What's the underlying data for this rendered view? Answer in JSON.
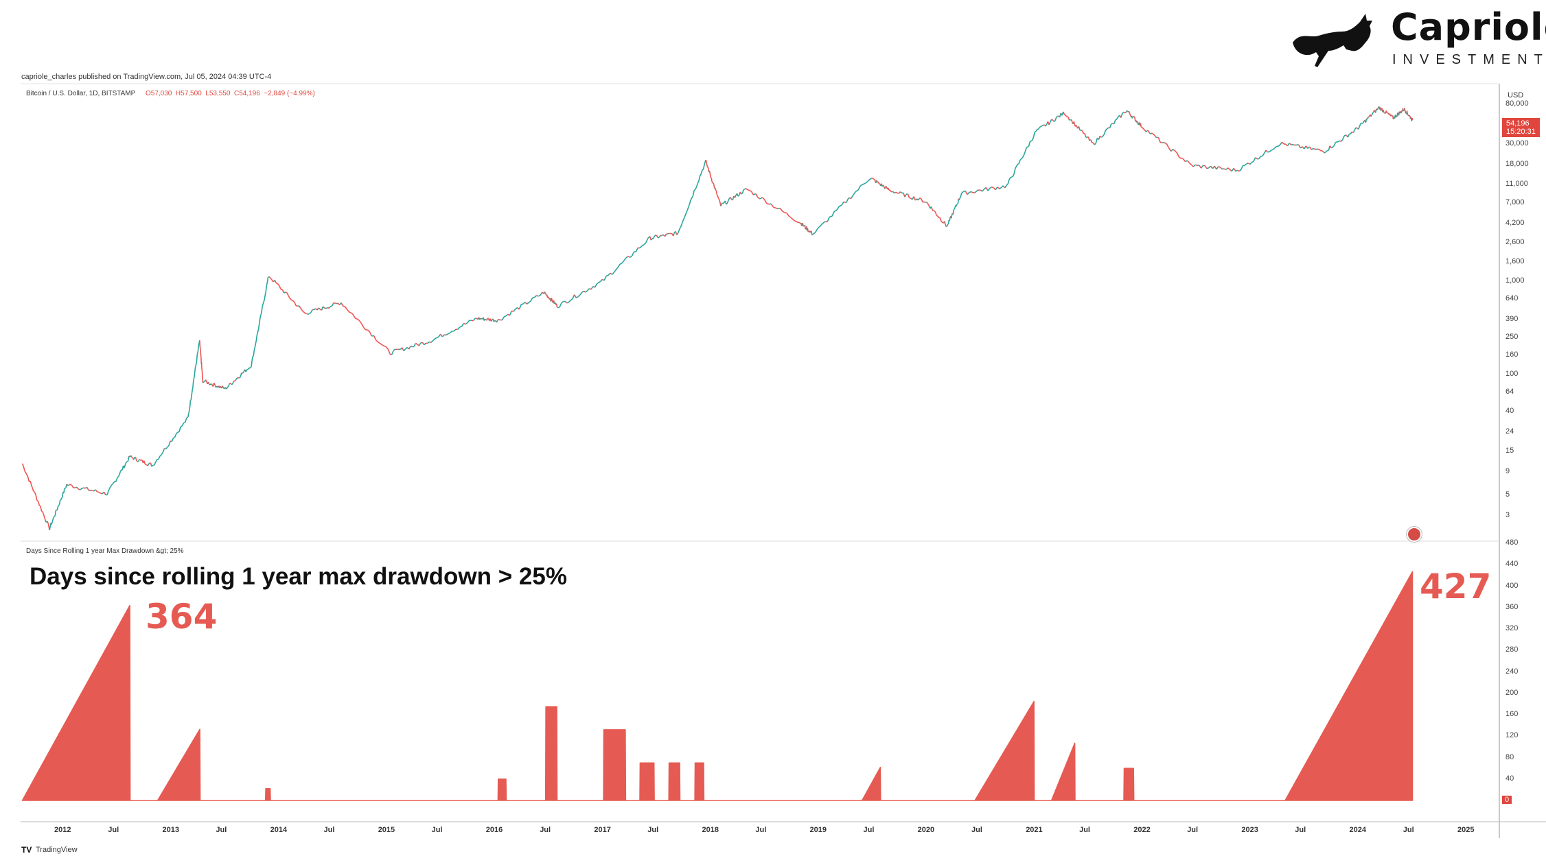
{
  "brand": {
    "name": "Capriole",
    "subtitle": "INVESTMENTS"
  },
  "header": {
    "published": "capriole_charles published on TradingView.com, Jul 05, 2024 04:39 UTC-4",
    "symbol_line": "Bitcoin / U.S. Dollar, 1D, BITSTAMP",
    "ohlc": "O57,030  H57,500  L53,550  C54,196  −2,849 (−4.99%)"
  },
  "price_axis": {
    "currency": "USD",
    "ticks": [
      "80,000",
      "30,000",
      "18,000",
      "11,000",
      "7,000",
      "4,200",
      "2,600",
      "1,600",
      "1,000",
      "640",
      "390",
      "250",
      "160",
      "100",
      "64",
      "40",
      "24",
      "15",
      "9",
      "5",
      "3"
    ],
    "last_price": "54,196",
    "countdown": "15:20:31"
  },
  "indicator": {
    "label": "Days Since Rolling 1 year Max Drawdown &gt; 25%",
    "title": "Days since rolling 1 year max drawdown > 25%",
    "left_value": "364",
    "right_value": "427",
    "axis_ticks": [
      "480",
      "440",
      "400",
      "360",
      "320",
      "280",
      "240",
      "200",
      "160",
      "120",
      "80",
      "40",
      "0"
    ]
  },
  "time_axis": {
    "labels": [
      "2012",
      "Jul",
      "2013",
      "Jul",
      "2014",
      "Jul",
      "2015",
      "Jul",
      "2016",
      "Jul",
      "2017",
      "Jul",
      "2018",
      "Jul",
      "2019",
      "Jul",
      "2020",
      "Jul",
      "2021",
      "Jul",
      "2022",
      "Jul",
      "2023",
      "Jul",
      "2024",
      "Jul",
      "2025"
    ]
  },
  "footer": {
    "logo": "TradingView"
  },
  "colors": {
    "accent": "#e55a52",
    "candle_up": "#26a69a",
    "candle_down": "#ef5350"
  },
  "chart_data": [
    {
      "type": "line",
      "title": "Bitcoin / U.S. Dollar, 1D, BITSTAMP",
      "ylabel": "USD",
      "scale": "log",
      "ylim": [
        2.5,
        80000
      ],
      "xlim": [
        "2011-08-01",
        "2025-04-01"
      ],
      "grid": false,
      "x": [
        "2011-08-18",
        "2011-11-18",
        "2012-01-15",
        "2012-06-01",
        "2012-08-16",
        "2012-11-01",
        "2013-03-01",
        "2013-04-09",
        "2013-04-20",
        "2013-07-05",
        "2013-10-01",
        "2013-11-29",
        "2014-04-01",
        "2014-08-01",
        "2015-01-14",
        "2015-06-01",
        "2015-11-04",
        "2016-01-15",
        "2016-06-18",
        "2016-08-03",
        "2017-01-01",
        "2017-06-11",
        "2017-09-14",
        "2017-12-17",
        "2018-02-06",
        "2018-05-05",
        "2018-11-01",
        "2018-12-15",
        "2019-06-26",
        "2019-09-01",
        "2020-01-01",
        "2020-03-13",
        "2020-05-01",
        "2020-10-01",
        "2021-01-08",
        "2021-04-14",
        "2021-07-20",
        "2021-11-10",
        "2022-01-01",
        "2022-06-18",
        "2022-11-21",
        "2023-04-14",
        "2023-09-11",
        "2024-01-01",
        "2024-03-14",
        "2024-05-01",
        "2024-06-07",
        "2024-07-05"
      ],
      "y": [
        11,
        2.2,
        6.5,
        5.2,
        13,
        10.5,
        34,
        230,
        85,
        70,
        125,
        1150,
        450,
        590,
        170,
        230,
        400,
        380,
        760,
        540,
        1000,
        2900,
        3300,
        19500,
        6500,
        9800,
        4300,
        3200,
        13000,
        9500,
        7200,
        3900,
        8800,
        10600,
        41000,
        64800,
        29800,
        69000,
        46300,
        17600,
        15600,
        30400,
        25000,
        44000,
        73800,
        57000,
        71000,
        54196
      ]
    },
    {
      "type": "area",
      "title": "Days since rolling 1 year max drawdown > 25%",
      "ylim": [
        0,
        480
      ],
      "grid": false,
      "x": [
        "2011-08-18",
        "2012-08-16",
        "2012-08-17",
        "2012-11-18",
        "2013-04-10",
        "2013-04-11",
        "2013-11-18",
        "2013-11-19",
        "2013-12-04",
        "2013-12-05",
        "2015-11-01",
        "2015-11-03",
        "2016-01-14",
        "2016-01-15",
        "2016-02-10",
        "2016-02-11",
        "2016-06-23",
        "2016-06-24",
        "2016-07-31",
        "2016-08-01",
        "2017-01-05",
        "2017-01-06",
        "2017-03-20",
        "2017-03-21",
        "2017-05-08",
        "2017-05-09",
        "2017-06-25",
        "2017-06-26",
        "2017-08-14",
        "2017-08-15",
        "2017-09-20",
        "2017-09-21",
        "2017-11-10",
        "2017-11-11",
        "2017-12-10",
        "2017-12-11",
        "2019-05-30",
        "2019-07-31",
        "2019-08-01",
        "2020-06-15",
        "2021-01-01",
        "2021-01-02",
        "2021-03-01",
        "2021-05-19",
        "2021-05-20",
        "2021-10-25",
        "2021-11-01",
        "2021-11-02",
        "2021-12-04",
        "2021-12-05",
        "2023-05-01",
        "2024-07-05"
      ],
      "y": [
        0,
        364,
        0,
        0,
        133,
        0,
        0,
        22,
        22,
        0,
        0,
        0,
        0,
        40,
        40,
        0,
        0,
        175,
        175,
        0,
        0,
        132,
        132,
        0,
        0,
        70,
        70,
        0,
        0,
        70,
        70,
        0,
        0,
        70,
        70,
        0,
        0,
        62,
        0,
        0,
        185,
        0,
        0,
        107,
        0,
        0,
        0,
        60,
        60,
        0,
        0,
        427
      ]
    }
  ]
}
